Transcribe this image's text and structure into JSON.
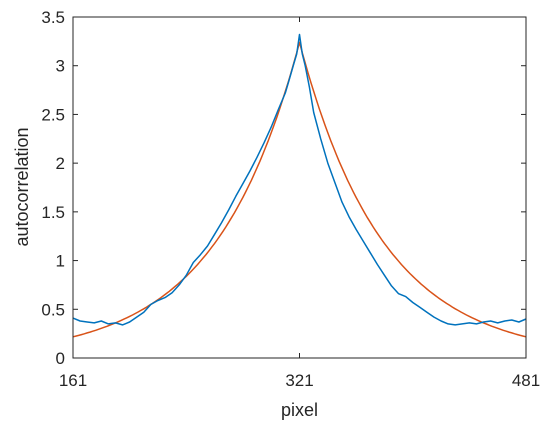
{
  "chart_data": {
    "type": "line",
    "xlabel": "pixel",
    "ylabel": "autocorrelation",
    "xlim": [
      161,
      481
    ],
    "ylim": [
      0,
      3.5
    ],
    "xticks": [
      161,
      321,
      481
    ],
    "xtick_labels": [
      "161",
      "321",
      "481"
    ],
    "yticks": [
      0,
      0.5,
      1,
      1.5,
      2,
      2.5,
      3,
      3.5
    ],
    "ytick_labels": [
      "0",
      "0.5",
      "1",
      "1.5",
      "2",
      "2.5",
      "3",
      "3.5"
    ],
    "grid": false,
    "box": true,
    "series": [
      {
        "color": "#0072BD",
        "x": [
          161,
          166,
          171,
          176,
          181,
          186,
          191,
          196,
          201,
          206,
          211,
          216,
          221,
          226,
          231,
          236,
          241,
          246,
          251,
          256,
          261,
          266,
          271,
          276,
          281,
          286,
          291,
          296,
          301,
          306,
          311,
          314,
          317,
          319,
          320,
          321,
          322,
          323,
          325,
          328,
          331,
          336,
          341,
          346,
          351,
          356,
          361,
          366,
          371,
          376,
          381,
          386,
          391,
          396,
          401,
          406,
          411,
          416,
          421,
          426,
          431,
          436,
          441,
          446,
          451,
          456,
          461,
          466,
          471,
          476,
          481
        ],
        "y": [
          0.41,
          0.38,
          0.37,
          0.36,
          0.38,
          0.35,
          0.36,
          0.34,
          0.37,
          0.42,
          0.47,
          0.55,
          0.59,
          0.62,
          0.67,
          0.75,
          0.85,
          0.98,
          1.06,
          1.15,
          1.27,
          1.39,
          1.52,
          1.66,
          1.79,
          1.92,
          2.06,
          2.21,
          2.37,
          2.55,
          2.72,
          2.87,
          3.02,
          3.12,
          3.22,
          3.32,
          3.22,
          3.12,
          3.0,
          2.78,
          2.52,
          2.25,
          2.0,
          1.8,
          1.6,
          1.45,
          1.32,
          1.2,
          1.08,
          0.96,
          0.85,
          0.74,
          0.66,
          0.63,
          0.57,
          0.52,
          0.47,
          0.42,
          0.38,
          0.35,
          0.34,
          0.35,
          0.36,
          0.35,
          0.37,
          0.38,
          0.36,
          0.38,
          0.39,
          0.37,
          0.4
        ]
      },
      {
        "color": "#D95319",
        "model": "exponential",
        "center": 321,
        "peak": 3.24,
        "decay_length": 59.2,
        "x_step": 2
      }
    ]
  }
}
